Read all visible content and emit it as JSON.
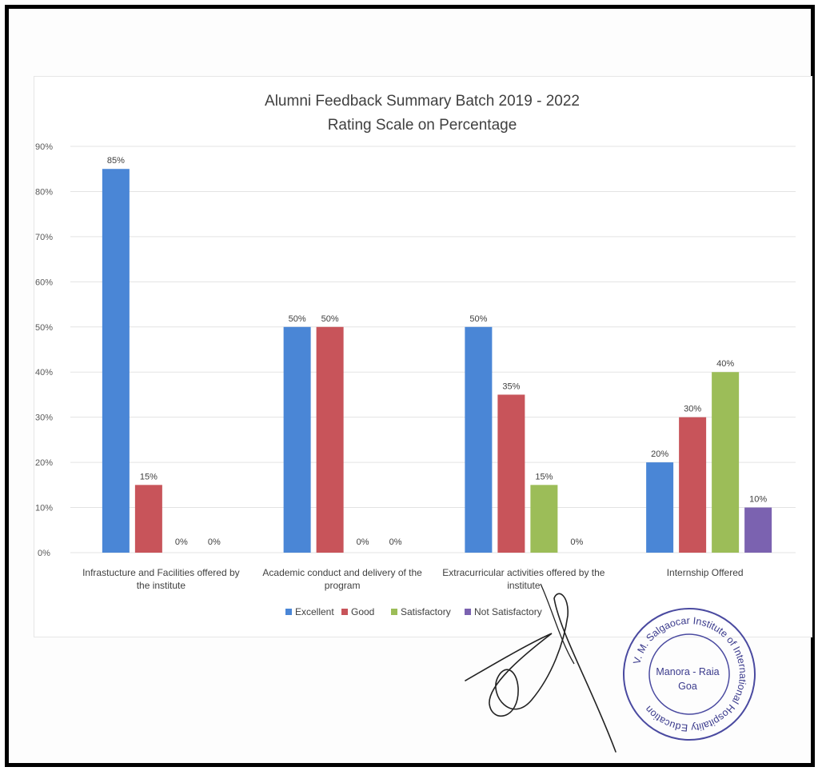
{
  "chart_data": {
    "type": "bar",
    "title": "Alumni Feedback Summary Batch 2019 - 2022",
    "subtitle": "Rating Scale on Percentage",
    "categories": [
      [
        "Infrastucture and Facilities offered by",
        "the institute"
      ],
      [
        "Academic conduct and delivery of the",
        "program"
      ],
      [
        "Extracurricular activities offered by the",
        "institute"
      ],
      [
        "Internship Offered"
      ]
    ],
    "series": [
      {
        "name": "Excellent",
        "color": "#4a86d6",
        "values": [
          85,
          50,
          50,
          20
        ]
      },
      {
        "name": "Good",
        "color": "#c8545a",
        "values": [
          15,
          50,
          35,
          30
        ]
      },
      {
        "name": "Satisfactory",
        "color": "#9cbd58",
        "values": [
          0,
          0,
          15,
          40
        ]
      },
      {
        "name": "Not Satisfactory",
        "color": "#7b62b0",
        "values": [
          0,
          0,
          0,
          10
        ]
      }
    ],
    "data_labels": [
      [
        "85%",
        "50%",
        "50%",
        "20%"
      ],
      [
        "15%",
        "50%",
        "35%",
        "30%"
      ],
      [
        "0%",
        "0%",
        "15%",
        "40%"
      ],
      [
        "0%",
        "0%",
        "0%",
        "10%"
      ]
    ],
    "yticks": [
      0,
      10,
      20,
      30,
      40,
      50,
      60,
      70,
      80,
      90
    ],
    "ytick_labels": [
      "0%",
      "10%",
      "20%",
      "30%",
      "40%",
      "50%",
      "60%",
      "70%",
      "80%",
      "90%"
    ],
    "ylim": [
      0,
      90
    ],
    "xlabel": "",
    "ylabel": "",
    "grid": true,
    "legend_position": "bottom"
  },
  "stamp": {
    "text": "V. M. Salgaocar Institute of International Hospitality Education",
    "center_line1": "Manora - Raia",
    "center_line2": "Goa",
    "color": "#3a3a8c"
  }
}
